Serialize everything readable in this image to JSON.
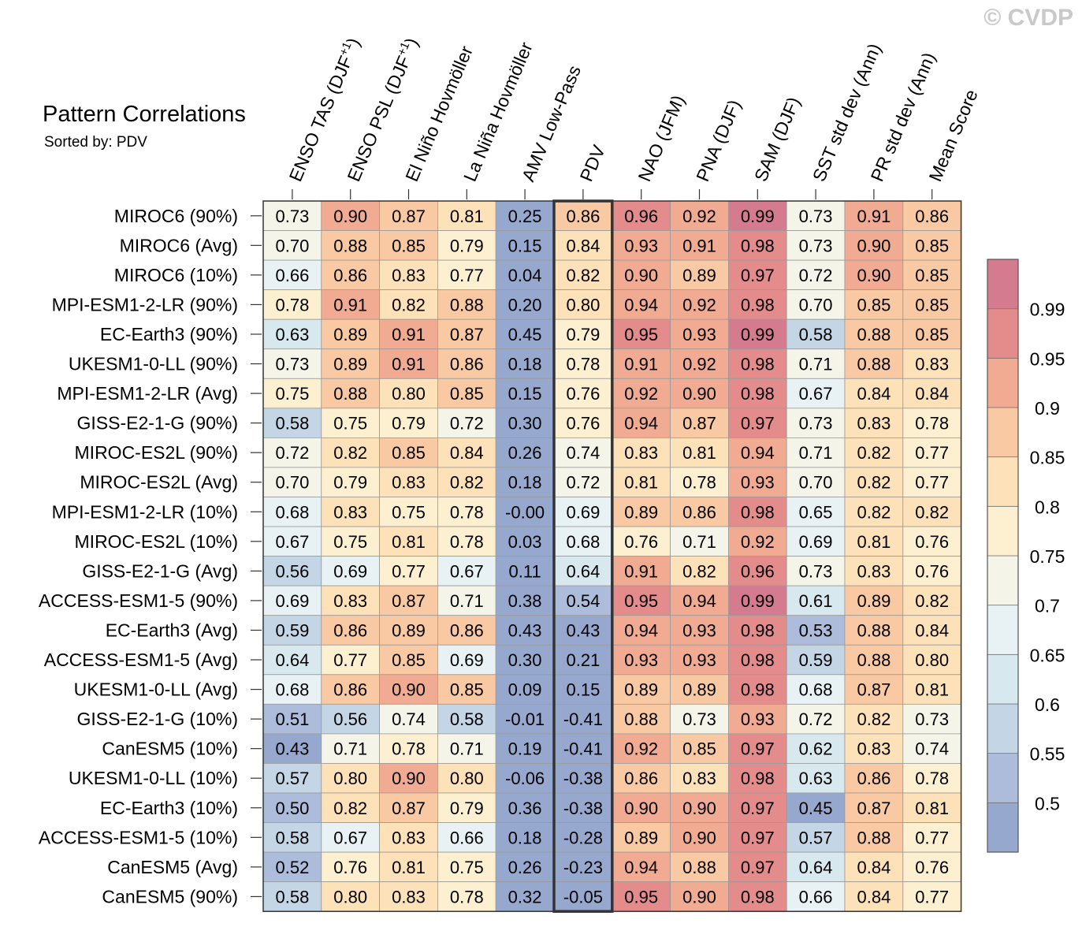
{
  "watermark": "© CVDP",
  "chart_data": {
    "type": "heatmap",
    "title": "Pattern Correlations",
    "subtitle": "Sorted by: PDV",
    "columns": [
      "ENSO TAS (DJF+1)",
      "ENSO PSL (DJF+1)",
      "El Niño Hovmöller",
      "La Niña Hovmöller",
      "AMV Low-Pass",
      "PDV",
      "NAO (JFM)",
      "PNA (DJF)",
      "SAM (DJF)",
      "SST std dev (Ann)",
      "PR std dev (Ann)",
      "Mean Score"
    ],
    "highlighted_column": "PDV",
    "rows": [
      {
        "name": "MIROC6 (90%)",
        "values": [
          0.73,
          0.9,
          0.87,
          0.81,
          0.25,
          0.86,
          0.96,
          0.92,
          0.99,
          0.73,
          0.91,
          0.86
        ]
      },
      {
        "name": "MIROC6 (Avg)",
        "values": [
          0.7,
          0.88,
          0.85,
          0.79,
          0.15,
          0.84,
          0.93,
          0.91,
          0.98,
          0.73,
          0.9,
          0.85
        ]
      },
      {
        "name": "MIROC6 (10%)",
        "values": [
          0.66,
          0.86,
          0.83,
          0.77,
          0.04,
          0.82,
          0.9,
          0.89,
          0.97,
          0.72,
          0.9,
          0.85
        ]
      },
      {
        "name": "MPI-ESM1-2-LR (90%)",
        "values": [
          0.78,
          0.91,
          0.82,
          0.88,
          0.2,
          0.8,
          0.94,
          0.92,
          0.98,
          0.7,
          0.85,
          0.85
        ]
      },
      {
        "name": "EC-Earth3 (90%)",
        "values": [
          0.63,
          0.89,
          0.91,
          0.87,
          0.45,
          0.79,
          0.95,
          0.93,
          0.99,
          0.58,
          0.88,
          0.85
        ]
      },
      {
        "name": "UKESM1-0-LL (90%)",
        "values": [
          0.73,
          0.89,
          0.91,
          0.86,
          0.18,
          0.78,
          0.91,
          0.92,
          0.98,
          0.71,
          0.88,
          0.83
        ]
      },
      {
        "name": "MPI-ESM1-2-LR (Avg)",
        "values": [
          0.75,
          0.88,
          0.8,
          0.85,
          0.15,
          0.76,
          0.92,
          0.9,
          0.98,
          0.67,
          0.84,
          0.84
        ]
      },
      {
        "name": "GISS-E2-1-G (90%)",
        "values": [
          0.58,
          0.75,
          0.79,
          0.72,
          0.3,
          0.76,
          0.94,
          0.87,
          0.97,
          0.73,
          0.83,
          0.78
        ]
      },
      {
        "name": "MIROC-ES2L (90%)",
        "values": [
          0.72,
          0.82,
          0.85,
          0.84,
          0.26,
          0.74,
          0.83,
          0.81,
          0.94,
          0.71,
          0.82,
          0.77
        ]
      },
      {
        "name": "MIROC-ES2L (Avg)",
        "values": [
          0.7,
          0.79,
          0.83,
          0.82,
          0.18,
          0.72,
          0.81,
          0.78,
          0.93,
          0.7,
          0.82,
          0.77
        ]
      },
      {
        "name": "MPI-ESM1-2-LR (10%)",
        "values": [
          0.68,
          0.83,
          0.75,
          0.78,
          -0.0,
          0.69,
          0.89,
          0.86,
          0.98,
          0.65,
          0.82,
          0.82
        ]
      },
      {
        "name": "MIROC-ES2L (10%)",
        "values": [
          0.67,
          0.75,
          0.81,
          0.78,
          0.03,
          0.68,
          0.76,
          0.71,
          0.92,
          0.69,
          0.81,
          0.76
        ]
      },
      {
        "name": "GISS-E2-1-G (Avg)",
        "values": [
          0.56,
          0.69,
          0.77,
          0.67,
          0.11,
          0.64,
          0.91,
          0.82,
          0.96,
          0.73,
          0.83,
          0.76
        ]
      },
      {
        "name": "ACCESS-ESM1-5 (90%)",
        "values": [
          0.69,
          0.83,
          0.87,
          0.71,
          0.38,
          0.54,
          0.95,
          0.94,
          0.99,
          0.61,
          0.89,
          0.82
        ]
      },
      {
        "name": "EC-Earth3 (Avg)",
        "values": [
          0.59,
          0.86,
          0.89,
          0.86,
          0.43,
          0.43,
          0.94,
          0.93,
          0.98,
          0.53,
          0.88,
          0.84
        ]
      },
      {
        "name": "ACCESS-ESM1-5 (Avg)",
        "values": [
          0.64,
          0.77,
          0.85,
          0.69,
          0.3,
          0.21,
          0.93,
          0.93,
          0.98,
          0.59,
          0.88,
          0.8
        ]
      },
      {
        "name": "UKESM1-0-LL (Avg)",
        "values": [
          0.68,
          0.86,
          0.9,
          0.85,
          0.09,
          0.15,
          0.89,
          0.89,
          0.98,
          0.68,
          0.87,
          0.81
        ]
      },
      {
        "name": "GISS-E2-1-G (10%)",
        "values": [
          0.51,
          0.56,
          0.74,
          0.58,
          -0.01,
          -0.41,
          0.88,
          0.73,
          0.93,
          0.72,
          0.82,
          0.73
        ]
      },
      {
        "name": "CanESM5 (10%)",
        "values": [
          0.43,
          0.71,
          0.78,
          0.71,
          0.19,
          -0.41,
          0.92,
          0.85,
          0.97,
          0.62,
          0.83,
          0.74
        ]
      },
      {
        "name": "UKESM1-0-LL (10%)",
        "values": [
          0.57,
          0.8,
          0.9,
          0.8,
          -0.06,
          -0.38,
          0.86,
          0.83,
          0.98,
          0.63,
          0.86,
          0.78
        ]
      },
      {
        "name": "EC-Earth3 (10%)",
        "values": [
          0.5,
          0.82,
          0.87,
          0.79,
          0.36,
          -0.38,
          0.9,
          0.9,
          0.97,
          0.45,
          0.87,
          0.81
        ]
      },
      {
        "name": "ACCESS-ESM1-5 (10%)",
        "values": [
          0.58,
          0.67,
          0.83,
          0.66,
          0.18,
          -0.28,
          0.89,
          0.9,
          0.97,
          0.57,
          0.88,
          0.77
        ]
      },
      {
        "name": "CanESM5 (Avg)",
        "values": [
          0.52,
          0.76,
          0.81,
          0.75,
          0.26,
          -0.23,
          0.94,
          0.88,
          0.97,
          0.64,
          0.84,
          0.76
        ]
      },
      {
        "name": "CanESM5 (90%)",
        "values": [
          0.58,
          0.8,
          0.83,
          0.78,
          0.32,
          -0.05,
          0.95,
          0.9,
          0.98,
          0.66,
          0.84,
          0.77
        ]
      }
    ],
    "colorbar": {
      "boundaries": [
        0.5,
        0.55,
        0.6,
        0.65,
        0.7,
        0.75,
        0.8,
        0.85,
        0.9,
        0.95,
        0.99
      ],
      "tick_labels": [
        "0.99",
        "0.95",
        "0.9",
        "0.85",
        "0.8",
        "0.75",
        "0.7",
        "0.65",
        "0.6",
        "0.55",
        "0.5"
      ],
      "colors": [
        "#97a8cf",
        "#acbcda",
        "#c4d6e6",
        "#d8e8ef",
        "#e8f1f4",
        "#f4f4e9",
        "#fdf0d0",
        "#fde1b8",
        "#f9c9a3",
        "#f2ab93",
        "#e48b8c",
        "#d57b8f"
      ]
    }
  }
}
